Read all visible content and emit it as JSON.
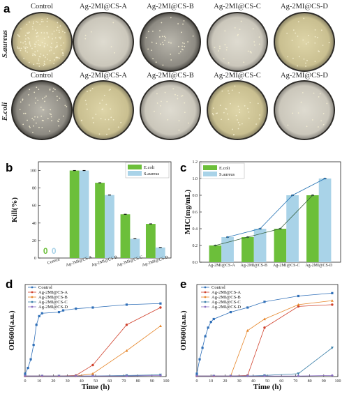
{
  "panel_a": {
    "letter": "a",
    "columns": [
      "Control",
      "Ag-2MI@CS-A",
      "Ag-2MI@CS-B",
      "Ag-2MI@CS-C",
      "Ag-2MI@CS-D"
    ],
    "rows": [
      "S.aureus",
      "E.coli"
    ]
  },
  "colors": {
    "ecoli_bar": "#6cbf3a",
    "saureus_bar": "#a9d3e8",
    "line_blue": "#1f6fb2",
    "line_dark": "#355e3b",
    "control": "#2f6fb8",
    "A": "#d0412c",
    "B": "#e6862a",
    "C": "#3a7fa8",
    "D": "#8a6fc0"
  },
  "chart_data": [
    {
      "id": "b",
      "letter": "b",
      "type": "bar",
      "ylabel": "Kill(%)",
      "ylim": [
        0,
        110
      ],
      "yticks": [
        0,
        20,
        40,
        60,
        80,
        100
      ],
      "categories": [
        "Control",
        "Ag-2MI@CS-A",
        "Ag-2MI@CS-B",
        "Ag-2MI@CS-C",
        "Ag-2MI@CS-D"
      ],
      "series": [
        {
          "name": "E.coli",
          "values": [
            0,
            100,
            86,
            50,
            39
          ]
        },
        {
          "name": "S.aureus",
          "values": [
            0,
            100,
            72,
            22,
            12
          ]
        }
      ],
      "zero_labels": [
        "0",
        "0"
      ],
      "legend": "top-right"
    },
    {
      "id": "c",
      "letter": "c",
      "type": "bar",
      "ylabel": "MIC(mg/mL)",
      "ylim": [
        0,
        1.2
      ],
      "yticks": [
        0.0,
        0.2,
        0.4,
        0.6,
        0.8,
        1.0,
        1.2
      ],
      "categories": [
        "Ag-2MI@CS-A",
        "Ag-2MI@CS-B",
        "Ag-2MI@CS-C",
        "Ag-2MI@CS-D"
      ],
      "series": [
        {
          "name": "E.coli",
          "values": [
            0.2,
            0.3,
            0.4,
            0.8
          ]
        },
        {
          "name": "S.aureus",
          "values": [
            0.3,
            0.4,
            0.8,
            1.0
          ]
        }
      ],
      "legend": "top-left"
    },
    {
      "id": "d",
      "letter": "d",
      "type": "line",
      "xlabel": "Time (h)",
      "ylabel": "OD600(a.u.)",
      "xlim": [
        0,
        100
      ],
      "ylim": [
        0,
        1.6
      ],
      "xticks": [
        0,
        10,
        20,
        30,
        40,
        50,
        60,
        70,
        80,
        90,
        100
      ],
      "series": [
        {
          "name": "Control",
          "x": [
            0,
            2,
            4,
            6,
            8,
            10,
            12,
            24,
            27,
            36,
            48,
            72,
            96
          ],
          "y": [
            0.05,
            0.15,
            0.3,
            0.55,
            0.9,
            1.05,
            1.1,
            1.12,
            1.15,
            1.18,
            1.2,
            1.25,
            1.27
          ]
        },
        {
          "name": "Ag-2MI@CS-A",
          "x": [
            0,
            12,
            24,
            36,
            48,
            72,
            96
          ],
          "y": [
            0.01,
            0.01,
            0.01,
            0.02,
            0.2,
            0.9,
            1.2
          ]
        },
        {
          "name": "Ag-2MI@CS-B",
          "x": [
            0,
            12,
            24,
            36,
            48,
            72,
            96
          ],
          "y": [
            0.01,
            0.01,
            0.01,
            0.01,
            0.05,
            0.45,
            0.88
          ]
        },
        {
          "name": "Ag-2MI@CS-C",
          "x": [
            0,
            12,
            24,
            36,
            48,
            72,
            96
          ],
          "y": [
            0.01,
            0.01,
            0.01,
            0.01,
            0.01,
            0.02,
            0.03
          ]
        },
        {
          "name": "Ag-2MI@CS-D",
          "x": [
            0,
            12,
            24,
            36,
            48,
            72,
            96
          ],
          "y": [
            0.01,
            0.01,
            0.01,
            0.01,
            0.01,
            0.01,
            0.02
          ]
        }
      ],
      "legend": "top-left"
    },
    {
      "id": "e",
      "letter": "e",
      "type": "line",
      "xlabel": "Time (h)",
      "ylabel": "OD600(a.u.)",
      "xlim": [
        0,
        100
      ],
      "ylim": [
        0,
        1.6
      ],
      "xticks": [
        0,
        10,
        20,
        30,
        40,
        50,
        60,
        70,
        80,
        90,
        100
      ],
      "series": [
        {
          "name": "Control",
          "x": [
            0,
            2,
            4,
            6,
            8,
            10,
            12,
            24,
            36,
            48,
            72,
            96
          ],
          "y": [
            0.05,
            0.3,
            0.5,
            0.7,
            0.85,
            0.95,
            1.0,
            1.12,
            1.2,
            1.3,
            1.4,
            1.45
          ]
        },
        {
          "name": "Ag-2MI@CS-A",
          "x": [
            0,
            12,
            24,
            36,
            48,
            72,
            96
          ],
          "y": [
            0.01,
            0.01,
            0.01,
            0.02,
            0.85,
            1.22,
            1.25
          ]
        },
        {
          "name": "Ag-2MI@CS-B",
          "x": [
            0,
            12,
            24,
            36,
            48,
            72,
            96
          ],
          "y": [
            0.01,
            0.01,
            0.01,
            0.8,
            1.0,
            1.25,
            1.32
          ]
        },
        {
          "name": "Ag-2MI@CS-C",
          "x": [
            0,
            12,
            24,
            36,
            48,
            72,
            96
          ],
          "y": [
            0.01,
            0.01,
            0.01,
            0.01,
            0.02,
            0.05,
            0.5
          ]
        },
        {
          "name": "Ag-2MI@CS-D",
          "x": [
            0,
            12,
            24,
            36,
            48,
            72,
            96
          ],
          "y": [
            0.01,
            0.01,
            0.01,
            0.01,
            0.01,
            0.01,
            0.02
          ]
        }
      ],
      "legend": "top-left"
    }
  ]
}
